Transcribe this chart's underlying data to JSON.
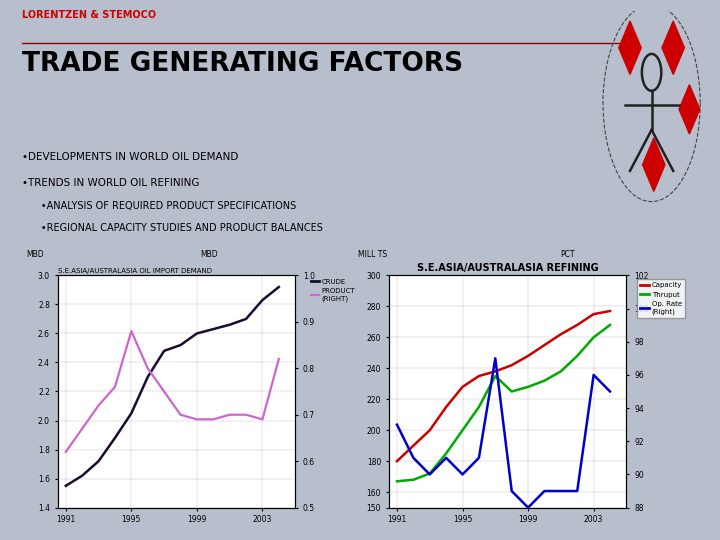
{
  "title": "TRADE GENERATING FACTORS",
  "company": "LORENTZEN & STEMOCO",
  "bullets": [
    "•DEVELOPMENTS IN WORLD OIL DEMAND",
    "•TRENDS IN WORLD OIL REFINING",
    "      •ANALYSIS OF REQUIRED PRODUCT SPECIFICATIONS",
    "      •REGIONAL CAPACITY STUDIES AND PRODUCT BALANCES"
  ],
  "chart1": {
    "title": "S.E.ASIA/AUSTRALASIA OIL IMPORT DEMAND",
    "ylabel_left": "MBD",
    "ylabel_right": "MBD",
    "x": [
      1991,
      1992,
      1993,
      1994,
      1995,
      1996,
      1997,
      1998,
      1999,
      2000,
      2001,
      2002,
      2003,
      2004
    ],
    "crude": [
      1.55,
      1.62,
      1.72,
      1.88,
      2.05,
      2.3,
      2.48,
      2.52,
      2.6,
      2.63,
      2.66,
      2.7,
      2.83,
      2.92
    ],
    "product": [
      0.62,
      0.67,
      0.72,
      0.76,
      0.88,
      0.8,
      0.75,
      0.7,
      0.69,
      0.69,
      0.7,
      0.7,
      0.69,
      0.82
    ],
    "crude_color": "#1a0a2e",
    "product_color": "#cc66cc",
    "ylim_left": [
      1.4,
      3.0
    ],
    "ylim_right": [
      0.5,
      1.0
    ],
    "yticks_left": [
      1.4,
      1.6,
      1.8,
      2.0,
      2.2,
      2.4,
      2.6,
      2.8,
      3.0
    ],
    "yticks_right": [
      0.5,
      0.6,
      0.7,
      0.8,
      0.9,
      1.0
    ],
    "xticks": [
      1991,
      1995,
      1999,
      2003
    ],
    "legend_crude": "CRUDE",
    "legend_product": "PRODUCT\n(RIGHT)"
  },
  "chart2": {
    "title": "S.E.ASIA/AUSTRALASIA REFINING",
    "ylabel_left": "MILL TS",
    "ylabel_right": "PCT",
    "x": [
      1991,
      1992,
      1993,
      1994,
      1995,
      1996,
      1997,
      1998,
      1999,
      2000,
      2001,
      2002,
      2003,
      2004
    ],
    "capacity": [
      180,
      190,
      200,
      215,
      228,
      235,
      238,
      242,
      248,
      255,
      262,
      268,
      275,
      277
    ],
    "thruput": [
      167,
      168,
      172,
      185,
      200,
      215,
      235,
      225,
      228,
      232,
      238,
      248,
      260,
      268
    ],
    "op_rate": [
      93,
      91,
      90,
      91,
      90,
      91,
      97,
      89,
      88,
      89,
      89,
      89,
      96,
      95
    ],
    "capacity_color": "#cc0000",
    "thruput_color": "#00aa00",
    "op_rate_color": "#0000cc",
    "ylim_left": [
      150,
      300
    ],
    "ylim_right": [
      88,
      102
    ],
    "yticks_left": [
      150,
      160,
      180,
      200,
      220,
      240,
      260,
      280,
      300
    ],
    "yticks_right": [
      88,
      90,
      92,
      94,
      96,
      98,
      100,
      102
    ],
    "xticks": [
      1991,
      1995,
      1999,
      2003
    ],
    "legend_capacity": "Capacity",
    "legend_thruput": "Thruput",
    "legend_op_rate": "Op. Rate\n(Right)"
  },
  "slide_bg": "#b8bfcc",
  "top_bg": "#ffffff",
  "chart_bg": "#b8bfcc"
}
